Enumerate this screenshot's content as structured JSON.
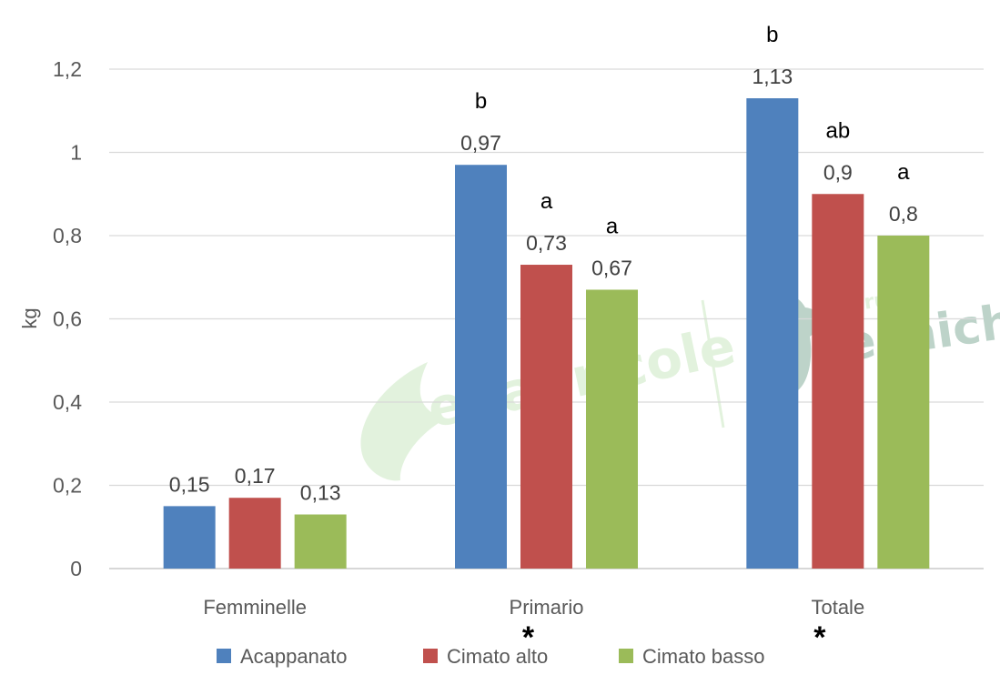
{
  "chart_data": {
    "type": "bar",
    "categories": [
      "Femminelle",
      "Primario",
      "Totale"
    ],
    "series": [
      {
        "name": "Acappanato",
        "color": "#4f81bd",
        "values": [
          0.15,
          0.97,
          1.13
        ],
        "labels": [
          "0,15",
          "0,97",
          "1,13"
        ],
        "letters": [
          "",
          "b",
          "b"
        ]
      },
      {
        "name": "Cimato alto",
        "color": "#c0504d",
        "values": [
          0.17,
          0.73,
          0.9
        ],
        "labels": [
          "0,17",
          "0,73",
          "0,9"
        ],
        "letters": [
          "",
          "a",
          "ab"
        ]
      },
      {
        "name": "Cimato basso",
        "color": "#9bbb59",
        "values": [
          0.13,
          0.67,
          0.8
        ],
        "labels": [
          "0,13",
          "0,67",
          "0,8"
        ],
        "letters": [
          "",
          "a",
          "a"
        ]
      }
    ],
    "ylabel": "kg",
    "ylim": [
      0,
      1.2
    ],
    "yticks": [
      "0",
      "0,2",
      "0,4",
      "0,6",
      "0,8",
      "1",
      "1,2"
    ],
    "significance_marks": [
      "",
      "*",
      "*"
    ],
    "grid": true,
    "legend": "bottom"
  },
  "watermark": {
    "left_text": "edagricole",
    "right_small": "gruppo",
    "right_big": "tecniche"
  }
}
